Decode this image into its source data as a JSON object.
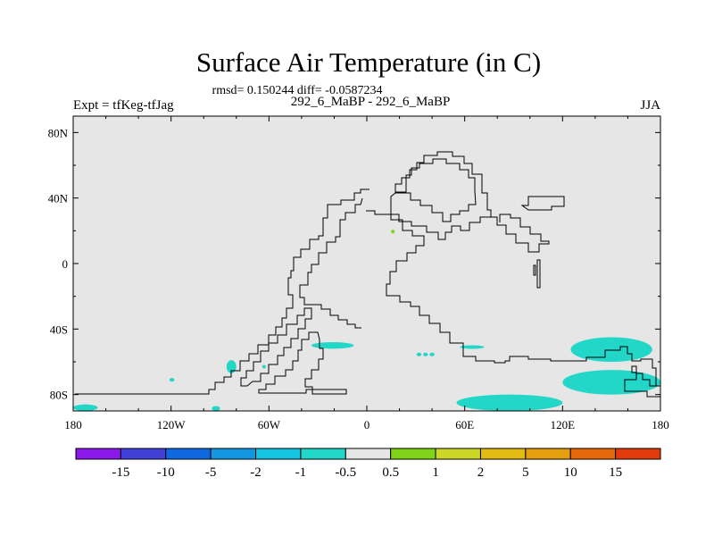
{
  "title": "Surface Air Temperature (in C)",
  "stats_line": "rmsd= 0.150244 diff= -0.0587234",
  "experiment_label": "Expt = tfKeg-tfJag",
  "case_label": "292_6_MaBP - 292_6_MaBP",
  "season_label": "JJA",
  "map": {
    "background_color": "#e6e6e6",
    "coastline_color": "#000000",
    "lon_range": [
      -180,
      180
    ],
    "lat_range": [
      -90,
      90
    ],
    "x_ticks": [
      {
        "lon": -180,
        "label": "180"
      },
      {
        "lon": -120,
        "label": "120W"
      },
      {
        "lon": -60,
        "label": "60W"
      },
      {
        "lon": 0,
        "label": "0"
      },
      {
        "lon": 60,
        "label": "60E"
      },
      {
        "lon": 120,
        "label": "120E"
      },
      {
        "lon": 180,
        "label": "180"
      }
    ],
    "y_ticks": [
      {
        "lat": 80,
        "label": "80N"
      },
      {
        "lat": 40,
        "label": "40N"
      },
      {
        "lat": 0,
        "label": "0"
      },
      {
        "lat": -40,
        "label": "40S"
      },
      {
        "lat": -80,
        "label": "80S"
      }
    ],
    "anomaly_regions": [
      {
        "category": "-1 to -0.5",
        "color": "#22d6c8",
        "lon": [
          -34,
          -8
        ],
        "lat": [
          -48,
          -52
        ],
        "shape": "blob"
      },
      {
        "category": "-1 to -0.5",
        "color": "#22d6c8",
        "lon": [
          -86,
          -80
        ],
        "lat": [
          -59,
          -67
        ],
        "shape": "blob"
      },
      {
        "category": "-1 to -0.5",
        "color": "#22d6c8",
        "lon": [
          -121,
          -118
        ],
        "lat": [
          -70,
          -72
        ],
        "shape": "blob"
      },
      {
        "category": "-1 to -0.5",
        "color": "#22d6c8",
        "lon": [
          -64,
          -62
        ],
        "lat": [
          -62,
          -64
        ],
        "shape": "blob"
      },
      {
        "category": "-1 to -0.5",
        "color": "#22d6c8",
        "lon": [
          30,
          42
        ],
        "lat": [
          -55,
          -56
        ],
        "shape": "dashes"
      },
      {
        "category": "-1 to -0.5",
        "color": "#22d6c8",
        "lon": [
          57,
          72
        ],
        "lat": [
          -50,
          -52
        ],
        "shape": "blob"
      },
      {
        "category": "-1 to -0.5",
        "color": "#22d6c8",
        "lon": [
          125,
          175
        ],
        "lat": [
          -45,
          -60
        ],
        "shape": "blob"
      },
      {
        "category": "-1 to -0.5",
        "color": "#22d6c8",
        "lon": [
          120,
          180
        ],
        "lat": [
          -65,
          -80
        ],
        "shape": "blob"
      },
      {
        "category": "-1 to -0.5",
        "color": "#22d6c8",
        "lon": [
          55,
          120
        ],
        "lat": [
          -80,
          -90
        ],
        "shape": "blob"
      },
      {
        "category": "-1 to -0.5",
        "color": "#22d6c8",
        "lon": [
          -180,
          -165
        ],
        "lat": [
          -86,
          -90
        ],
        "shape": "blob"
      },
      {
        "category": "-1 to -0.5",
        "color": "#22d6c8",
        "lon": [
          -95,
          -90
        ],
        "lat": [
          -87,
          -90
        ],
        "shape": "blob"
      },
      {
        "category": "0.5 to 1",
        "color": "#7fd318",
        "lon": [
          15,
          17
        ],
        "lat": [
          19,
          20
        ],
        "shape": "dot"
      }
    ]
  },
  "colorbar": {
    "colors": [
      "#8a18e8",
      "#4040d8",
      "#1068e0",
      "#1497e0",
      "#14c4e0",
      "#22d6c8",
      "#e6e6e6",
      "#7fd318",
      "#cbd826",
      "#e2bc12",
      "#e59e0e",
      "#e66a0a",
      "#e23a0a"
    ],
    "labels": [
      "-15",
      "-10",
      "-5",
      "-2",
      "-1",
      "-0.5",
      "0.5",
      "1",
      "2",
      "5",
      "10",
      "15"
    ]
  }
}
